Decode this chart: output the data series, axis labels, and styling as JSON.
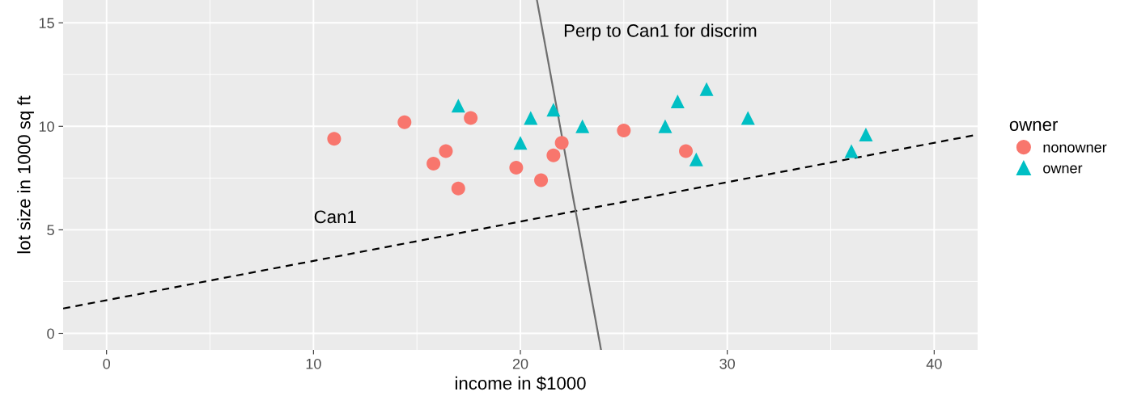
{
  "chart_data": {
    "type": "scatter",
    "xlabel": "income in $1000",
    "ylabel": "lot size in 1000 sq ft",
    "legend_title": "owner",
    "xlim": [
      -2.1,
      42.1
    ],
    "ylim": [
      -0.8,
      16.1
    ],
    "xticks": [
      0,
      10,
      20,
      30,
      40
    ],
    "yticks": [
      0,
      5,
      10,
      15
    ],
    "grid": true,
    "legend": "right",
    "series": [
      {
        "name": "nonowner",
        "color": "#f8766d",
        "marker": "circle",
        "x": [
          11.0,
          14.4,
          15.8,
          16.4,
          17.0,
          17.6,
          19.8,
          21.0,
          21.6,
          22.0,
          25.0,
          28.0
        ],
        "values": [
          9.4,
          10.2,
          8.2,
          8.8,
          7.0,
          10.4,
          8.0,
          7.4,
          8.6,
          9.2,
          9.8,
          8.8
        ]
      },
      {
        "name": "owner",
        "color": "#00bfc4",
        "marker": "triangle",
        "x": [
          17.0,
          20.0,
          20.5,
          21.6,
          23.0,
          27.0,
          27.6,
          28.5,
          29.0,
          31.0,
          36.0,
          36.7
        ],
        "values": [
          11.0,
          9.2,
          10.4,
          10.8,
          10.0,
          10.0,
          11.2,
          8.4,
          11.8,
          10.4,
          8.8,
          9.6
        ]
      },
      {
        "type": "line",
        "color": "#000000",
        "line_style": "dashed",
        "x": [
          -2.1,
          42.1
        ],
        "values": [
          1.2,
          9.6
        ]
      },
      {
        "type": "line",
        "color": "#6e6e6e",
        "line_style": "solid",
        "x": [
          20.8,
          23.9
        ],
        "values": [
          16.1,
          -0.8
        ]
      }
    ],
    "annotations": [
      "Perp to Can1 for discrim",
      "Can1"
    ]
  }
}
